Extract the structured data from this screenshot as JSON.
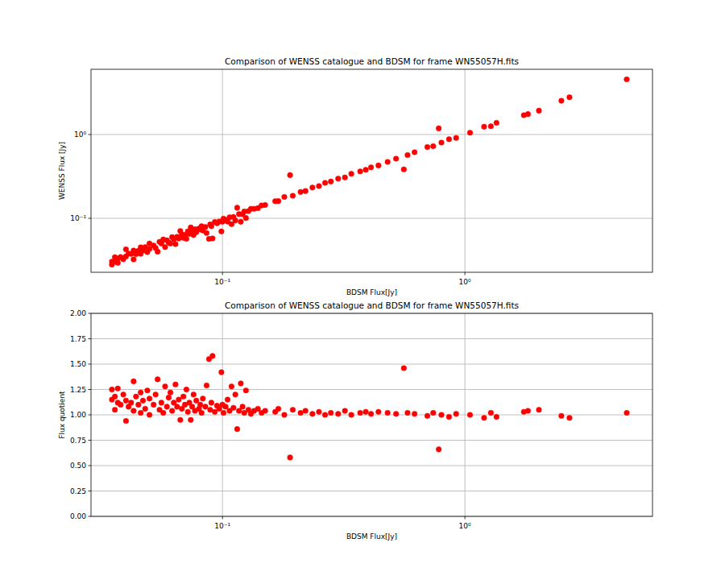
{
  "chart_data": [
    {
      "type": "scatter",
      "title": "Comparison of WENSS catalogue and BDSM for frame WN55057H.fits",
      "x_label": "BDSM Flux[Jy]",
      "y_label": "WENSS Flux [Jy]",
      "log": true,
      "grid": true,
      "color": "red",
      "marker": "circle",
      "xlim": [
        0.0287,
        5.94
      ],
      "ylim": [
        0.0227,
        6.0
      ],
      "xticks": [
        {
          "value": 0.1,
          "label": "10⁻¹"
        },
        {
          "value": 1,
          "label": "10⁰"
        }
      ],
      "yticks": [
        {
          "value": 0.1,
          "label": "10⁻¹"
        },
        {
          "value": 1,
          "label": "10⁰"
        }
      ],
      "x": [
        0.035,
        0.035,
        0.036,
        0.036,
        0.037,
        0.037,
        0.038,
        0.039,
        0.04,
        0.04,
        0.041,
        0.042,
        0.043,
        0.043,
        0.044,
        0.045,
        0.046,
        0.046,
        0.047,
        0.048,
        0.049,
        0.05,
        0.05,
        0.052,
        0.053,
        0.054,
        0.055,
        0.056,
        0.057,
        0.058,
        0.059,
        0.06,
        0.061,
        0.062,
        0.063,
        0.064,
        0.065,
        0.066,
        0.067,
        0.068,
        0.069,
        0.07,
        0.071,
        0.072,
        0.073,
        0.074,
        0.075,
        0.076,
        0.077,
        0.078,
        0.08,
        0.081,
        0.082,
        0.083,
        0.085,
        0.086,
        0.088,
        0.089,
        0.09,
        0.091,
        0.093,
        0.095,
        0.097,
        0.099,
        0.1,
        0.101,
        0.103,
        0.105,
        0.107,
        0.109,
        0.111,
        0.113,
        0.115,
        0.117,
        0.119,
        0.121,
        0.123,
        0.125,
        0.128,
        0.131,
        0.135,
        0.14,
        0.145,
        0.15,
        0.165,
        0.17,
        0.18,
        0.19,
        0.195,
        0.21,
        0.22,
        0.235,
        0.25,
        0.265,
        0.28,
        0.3,
        0.32,
        0.34,
        0.37,
        0.39,
        0.41,
        0.44,
        0.48,
        0.52,
        0.56,
        0.58,
        0.62,
        0.7,
        0.74,
        0.78,
        0.8,
        0.86,
        0.92,
        1.05,
        1.2,
        1.28,
        1.35,
        1.75,
        1.82,
        2.02,
        2.5,
        2.7,
        4.65
      ],
      "values": [
        0.028,
        0.0304,
        0.0343,
        0.0305,
        0.033,
        0.0294,
        0.0345,
        0.0325,
        0.0426,
        0.0351,
        0.038,
        0.0375,
        0.0323,
        0.0413,
        0.0373,
        0.0409,
        0.0451,
        0.0377,
        0.0412,
        0.0453,
        0.0395,
        0.05,
        0.0431,
        0.0473,
        0.0442,
        0.04,
        0.0524,
        0.05,
        0.0559,
        0.0453,
        0.0546,
        0.0513,
        0.05,
        0.0596,
        0.0563,
        0.0492,
        0.0602,
        0.0574,
        0.0705,
        0.0642,
        0.0585,
        0.0636,
        0.0568,
        0.0699,
        0.0652,
        0.0779,
        0.0694,
        0.0633,
        0.074,
        0.0684,
        0.0755,
        0.0736,
        0.0804,
        0.0716,
        0.0787,
        0.0667,
        0.0568,
        0.0848,
        0.0804,
        0.0576,
        0.0903,
        0.0872,
        0.0915,
        0.0697,
        0.0909,
        0.099,
        0.0954,
        0.0913,
        0.1029,
        0.0852,
        0.1037,
        0.0942,
        0.1337,
        0.1125,
        0.0908,
        0.112,
        0.1206,
        0.1008,
        0.1219,
        0.1297,
        0.1298,
        0.1321,
        0.1422,
        0.1442,
        0.1602,
        0.1604,
        0.18,
        0.3276,
        0.1857,
        0.2059,
        0.2115,
        0.2327,
        0.2427,
        0.265,
        0.2745,
        0.297,
        0.3077,
        0.34,
        0.3627,
        0.3786,
        0.4059,
        0.4272,
        0.4706,
        0.5149,
        0.3836,
        0.5686,
        0.6139,
        0.7071,
        0.7255,
        1.1818,
        0.8,
        0.8776,
        0.9109,
        1.05,
        1.2371,
        1.2549,
        1.3776,
        1.699,
        1.75,
        1.9238,
        2.5253,
        2.7835,
        4.55
      ]
    },
    {
      "type": "scatter",
      "title": "Comparison of WENSS catalogue and BDSM for frame WN55057H.fits",
      "x_label": "BDSM Flux[Jy]",
      "y_label": "Flux quotient",
      "log": "x",
      "grid": true,
      "color": "red",
      "marker": "circle",
      "xlim": [
        0.0287,
        5.94
      ],
      "ylim": [
        0,
        2
      ],
      "xticks": [
        {
          "value": 0.1,
          "label": "10⁻¹"
        },
        {
          "value": 1,
          "label": "10⁰"
        }
      ],
      "yticks": [
        {
          "value": 0,
          "label": "0.00"
        },
        0.25,
        {
          "value": 0.5,
          "label": "0.50"
        },
        0.75,
        {
          "value": 1,
          "label": "1.00"
        },
        1.25,
        {
          "value": 1.5,
          "label": "1.50"
        },
        1.75,
        {
          "value": 2,
          "label": "2.00"
        }
      ],
      "x": [
        0.035,
        0.035,
        0.036,
        0.036,
        0.037,
        0.037,
        0.038,
        0.039,
        0.04,
        0.04,
        0.041,
        0.042,
        0.043,
        0.043,
        0.044,
        0.045,
        0.046,
        0.046,
        0.047,
        0.048,
        0.049,
        0.05,
        0.05,
        0.052,
        0.053,
        0.054,
        0.055,
        0.056,
        0.057,
        0.058,
        0.059,
        0.06,
        0.061,
        0.062,
        0.063,
        0.064,
        0.065,
        0.066,
        0.067,
        0.068,
        0.069,
        0.07,
        0.071,
        0.072,
        0.073,
        0.074,
        0.075,
        0.076,
        0.077,
        0.078,
        0.08,
        0.081,
        0.082,
        0.083,
        0.085,
        0.086,
        0.088,
        0.089,
        0.09,
        0.091,
        0.093,
        0.095,
        0.097,
        0.099,
        0.1,
        0.101,
        0.103,
        0.105,
        0.107,
        0.109,
        0.111,
        0.113,
        0.115,
        0.117,
        0.119,
        0.121,
        0.123,
        0.125,
        0.128,
        0.131,
        0.135,
        0.14,
        0.145,
        0.15,
        0.165,
        0.17,
        0.18,
        0.19,
        0.195,
        0.21,
        0.22,
        0.235,
        0.25,
        0.265,
        0.28,
        0.3,
        0.32,
        0.34,
        0.37,
        0.39,
        0.41,
        0.44,
        0.48,
        0.52,
        0.56,
        0.58,
        0.62,
        0.7,
        0.74,
        0.78,
        0.8,
        0.86,
        0.92,
        1.05,
        1.2,
        1.28,
        1.35,
        1.75,
        1.82,
        2.02,
        2.5,
        2.7,
        4.65
      ],
      "values": [
        1.25,
        1.15,
        1.05,
        1.18,
        1.12,
        1.26,
        1.1,
        1.2,
        0.94,
        1.14,
        1.08,
        1.12,
        1.33,
        1.04,
        1.18,
        1.1,
        1.02,
        1.22,
        1.14,
        1.06,
        1.24,
        1.0,
        1.16,
        1.1,
        1.2,
        1.35,
        1.05,
        1.12,
        1.02,
        1.28,
        1.08,
        1.17,
        1.22,
        1.04,
        1.12,
        1.3,
        1.08,
        1.15,
        0.95,
        1.06,
        1.18,
        1.1,
        1.25,
        1.03,
        1.12,
        0.95,
        1.08,
        1.2,
        1.04,
        1.14,
        1.06,
        1.1,
        1.02,
        1.16,
        1.08,
        1.29,
        1.55,
        1.05,
        1.12,
        1.58,
        1.03,
        1.09,
        1.06,
        1.42,
        1.1,
        1.02,
        1.08,
        1.15,
        1.04,
        1.28,
        1.07,
        1.2,
        0.86,
        1.04,
        1.31,
        1.08,
        1.02,
        1.24,
        1.05,
        1.01,
        1.04,
        1.06,
        1.02,
        1.04,
        1.03,
        1.06,
        1.0,
        0.58,
        1.05,
        1.02,
        1.04,
        1.01,
        1.03,
        1.0,
        1.02,
        1.01,
        1.04,
        1.0,
        1.02,
        1.03,
        1.01,
        1.03,
        1.02,
        1.01,
        1.46,
        1.02,
        1.01,
        0.99,
        1.02,
        0.66,
        1.0,
        0.98,
        1.01,
        1.0,
        0.97,
        1.02,
        0.98,
        1.03,
        1.04,
        1.05,
        0.99,
        0.97,
        1.02
      ]
    }
  ]
}
